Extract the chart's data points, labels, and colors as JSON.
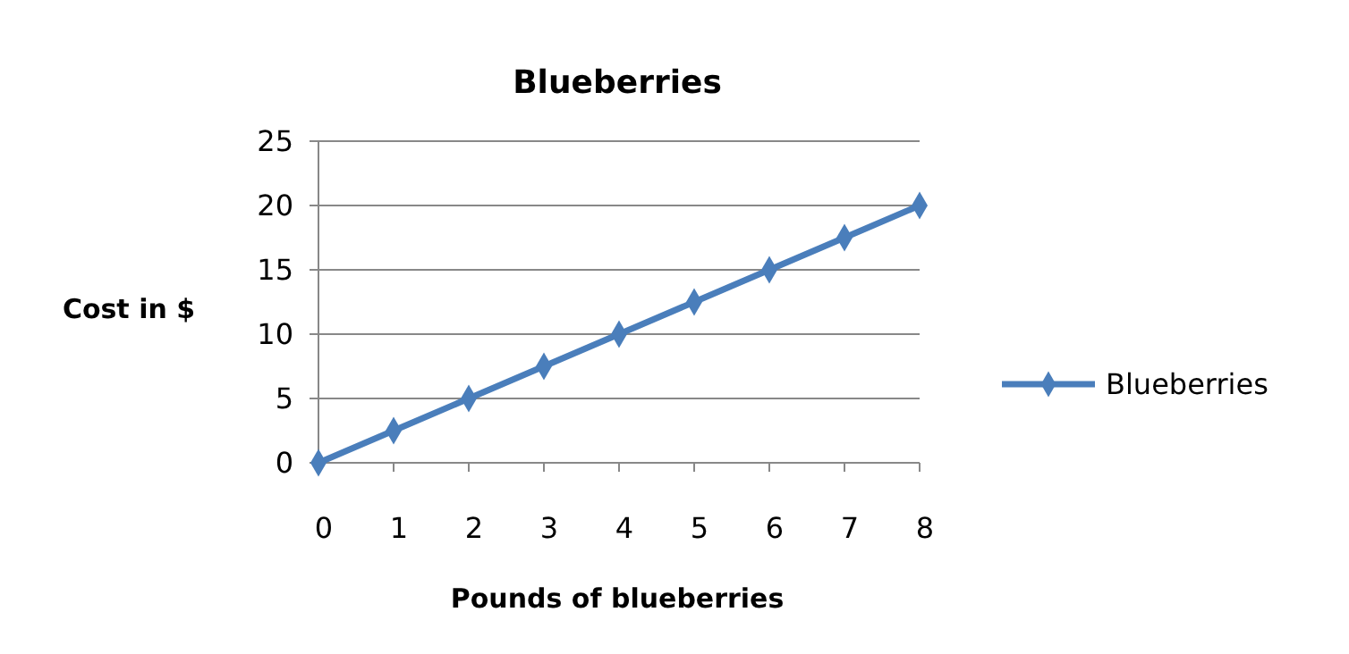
{
  "chart_data": {
    "type": "line",
    "title": "Blueberries",
    "xlabel": "Pounds of blueberries",
    "ylabel": "Cost in $",
    "x": [
      0,
      1,
      2,
      3,
      4,
      5,
      6,
      7,
      8
    ],
    "series": [
      {
        "name": "Blueberries",
        "color": "#4a7ebb",
        "values": [
          0,
          2.5,
          5,
          7.5,
          10,
          12.5,
          15,
          17.5,
          20
        ]
      }
    ],
    "xlim": [
      0,
      8
    ],
    "xticks": [
      0,
      1,
      2,
      3,
      4,
      5,
      6,
      7,
      8
    ],
    "ylim": [
      0,
      25
    ],
    "yticks": [
      0,
      5,
      10,
      15,
      20,
      25
    ],
    "grid": "y",
    "legend": "right",
    "marker": "diamond",
    "line_style": "solid"
  }
}
